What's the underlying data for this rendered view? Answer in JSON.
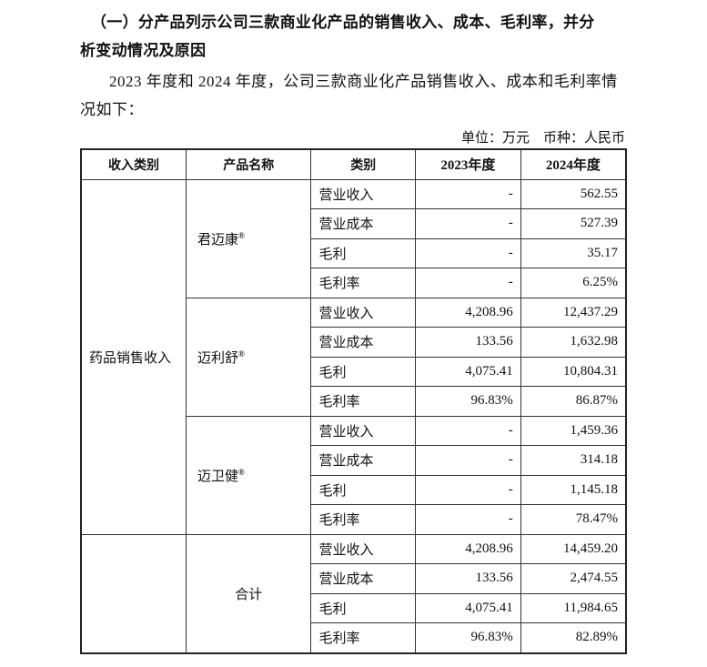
{
  "heading": {
    "line1": "（一）分产品列示公司三款商业化产品的销售收入、成本、毛利率，并分",
    "line2": "析变动情况及原因"
  },
  "paragraph": {
    "line1": "2023 年度和 2024 年度，公司三款商业化产品销售收入、成本和毛利率情",
    "line2": "况如下："
  },
  "unit_note": "单位：万元　币种：人民币",
  "table": {
    "headers": [
      "收入类别",
      "产品名称",
      "类别",
      "2023年度",
      "2024年度"
    ],
    "category": "药品销售收入",
    "registered_mark": "®",
    "groups": [
      {
        "product": "君迈康",
        "rows": [
          {
            "type": "营业收入",
            "y2023": "-",
            "y2024": "562.55"
          },
          {
            "type": "营业成本",
            "y2023": "-",
            "y2024": "527.39"
          },
          {
            "type": "毛利",
            "y2023": "-",
            "y2024": "35.17"
          },
          {
            "type": "毛利率",
            "y2023": "-",
            "y2024": "6.25%"
          }
        ]
      },
      {
        "product": "迈利舒",
        "rows": [
          {
            "type": "营业收入",
            "y2023": "4,208.96",
            "y2024": "12,437.29"
          },
          {
            "type": "营业成本",
            "y2023": "133.56",
            "y2024": "1,632.98"
          },
          {
            "type": "毛利",
            "y2023": "4,075.41",
            "y2024": "10,804.31"
          },
          {
            "type": "毛利率",
            "y2023": "96.83%",
            "y2024": "86.87%"
          }
        ]
      },
      {
        "product": "迈卫健",
        "rows": [
          {
            "type": "营业收入",
            "y2023": "-",
            "y2024": "1,459.36"
          },
          {
            "type": "营业成本",
            "y2023": "-",
            "y2024": "314.18"
          },
          {
            "type": "毛利",
            "y2023": "-",
            "y2024": "1,145.18"
          },
          {
            "type": "毛利率",
            "y2023": "-",
            "y2024": "78.47%"
          }
        ]
      }
    ],
    "total": {
      "product": "合计",
      "rows": [
        {
          "type": "营业收入",
          "y2023": "4,208.96",
          "y2024": "14,459.20"
        },
        {
          "type": "营业成本",
          "y2023": "133.56",
          "y2024": "2,474.55"
        },
        {
          "type": "毛利",
          "y2023": "4,075.41",
          "y2024": "11,984.65"
        },
        {
          "type": "毛利率",
          "y2023": "96.83%",
          "y2024": "82.89%"
        }
      ]
    }
  }
}
